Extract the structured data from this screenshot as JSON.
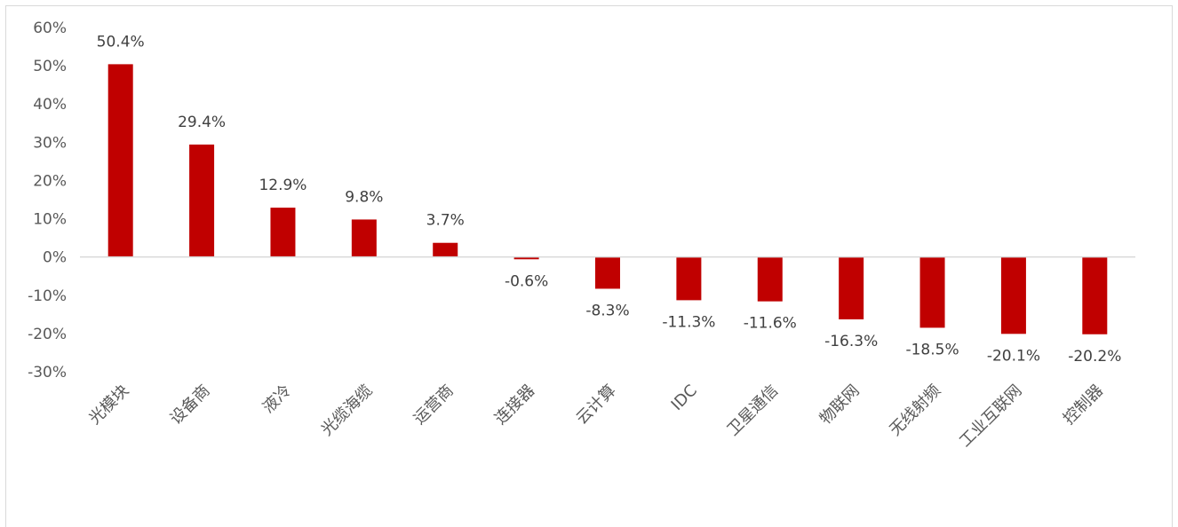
{
  "chart_data": {
    "type": "bar",
    "title": "",
    "xlabel": "",
    "ylabel": "",
    "ylim": [
      -30,
      60
    ],
    "yticks": [
      "60%",
      "50%",
      "40%",
      "30%",
      "20%",
      "10%",
      "0%",
      "-10%",
      "-20%",
      "-30%"
    ],
    "grid": false,
    "legend": "none",
    "bar_color": "#C00000",
    "categories": [
      "光模块",
      "设备商",
      "液冷",
      "光缆海缆",
      "运营商",
      "连接器",
      "云计算",
      "IDC",
      "卫星通信",
      "物联网",
      "无线射频",
      "工业互联网",
      "控制器"
    ],
    "values": [
      50.4,
      29.4,
      12.9,
      9.8,
      3.7,
      -0.6,
      -8.3,
      -11.3,
      -11.6,
      -16.3,
      -18.5,
      -20.1,
      -20.2
    ],
    "data_labels": [
      "50.4%",
      "29.4%",
      "12.9%",
      "9.8%",
      "3.7%",
      "-0.6%",
      "-8.3%",
      "-11.3%",
      "-11.6%",
      "-16.3%",
      "-18.5%",
      "-20.1%",
      "-20.2%"
    ]
  }
}
